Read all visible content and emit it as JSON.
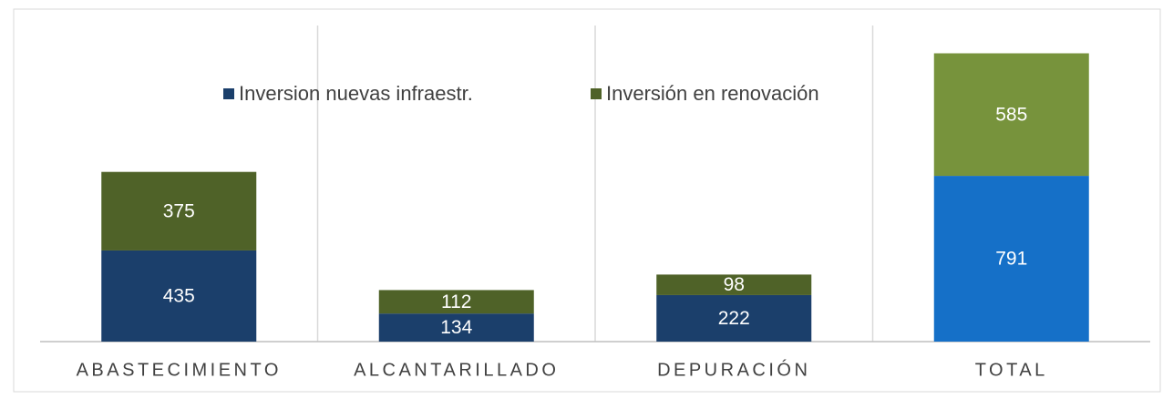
{
  "chart_data": {
    "type": "stacked_bar",
    "categories": [
      "ABASTECIMIENTO",
      "ALCANTARILLADO",
      "DEPURACIÓN",
      "TOTAL"
    ],
    "series": [
      {
        "name": "Inversion nuevas infraestr.",
        "color": "#1b3f6b",
        "colors": [
          "#1b3f6b",
          "#1b3f6b",
          "#1b3f6b",
          "#1570c8"
        ],
        "values": [
          435,
          134,
          222,
          791
        ]
      },
      {
        "name": "Inversión en renovación",
        "color": "#4f6228",
        "colors": [
          "#4f6228",
          "#4f6228",
          "#4f6228",
          "#77933c"
        ],
        "values": [
          375,
          112,
          98,
          585
        ]
      }
    ],
    "ylim": [
      0,
      1400
    ],
    "legend": "top"
  }
}
